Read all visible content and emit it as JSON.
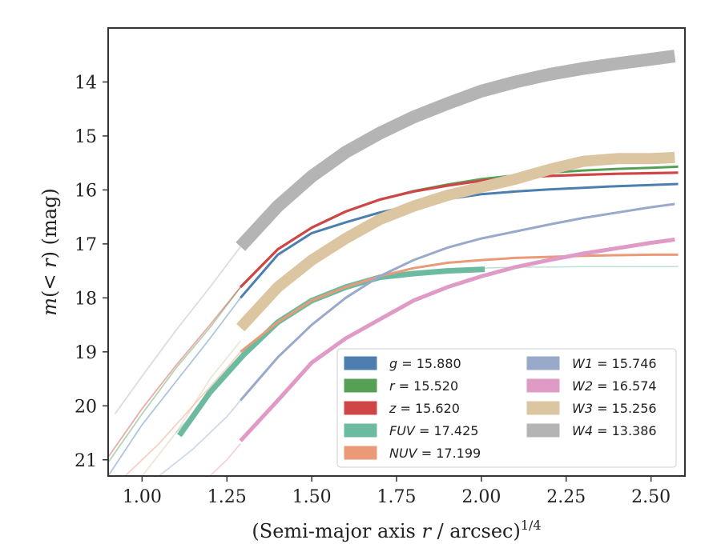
{
  "chart_data": {
    "type": "line",
    "title": "",
    "xlabel_html": [
      "(Semi-major axis ",
      "r",
      " / arcsec)",
      "1/4"
    ],
    "ylabel_parts": [
      "m",
      "(< ",
      "r",
      ") (mag)"
    ],
    "xlim": [
      0.9,
      2.6
    ],
    "ylim": [
      21.3,
      13.0
    ],
    "y_inverted": true,
    "xticks": [
      1.0,
      1.25,
      1.5,
      1.75,
      2.0,
      2.25,
      2.5
    ],
    "xtick_labels": [
      "1.00",
      "1.25",
      "1.50",
      "1.75",
      "2.00",
      "2.25",
      "2.50"
    ],
    "yticks": [
      14,
      15,
      16,
      17,
      18,
      19,
      20,
      21
    ],
    "ytick_labels": [
      "14",
      "15",
      "16",
      "17",
      "18",
      "19",
      "20",
      "21"
    ],
    "grid": false,
    "legend_position": "lower-right",
    "series": [
      {
        "key": "g",
        "label_var": "g",
        "label_val": "= 15.880",
        "color": "#4c7fb0",
        "faint": {
          "x": [
            0.9,
            1.0,
            1.1,
            1.2,
            1.29
          ],
          "y": [
            21.3,
            20.35,
            19.55,
            18.75,
            18.0
          ],
          "width": 1.8
        },
        "thick": {
          "x": [
            1.29,
            1.4,
            1.5,
            1.6,
            1.7,
            1.8,
            1.9,
            2.0,
            2.1,
            2.2,
            2.3,
            2.4,
            2.5,
            2.58
          ],
          "y": [
            18.0,
            17.2,
            16.8,
            16.6,
            16.42,
            16.28,
            16.17,
            16.08,
            16.03,
            15.99,
            15.96,
            15.93,
            15.91,
            15.89
          ],
          "width": 3.0
        }
      },
      {
        "key": "r",
        "label_var": "r",
        "label_val": "= 15.520",
        "color": "#55a055",
        "faint": {
          "x": [
            0.9,
            1.0,
            1.1,
            1.2,
            1.29
          ],
          "y": [
            21.05,
            20.15,
            19.3,
            18.55,
            17.8
          ],
          "width": 1.8
        },
        "thick": {
          "x": [
            1.29,
            1.4,
            1.5,
            1.6,
            1.7,
            1.8,
            1.9,
            2.0,
            2.1,
            2.2,
            2.3,
            2.4,
            2.5,
            2.58
          ],
          "y": [
            17.8,
            17.1,
            16.7,
            16.4,
            16.18,
            16.02,
            15.9,
            15.8,
            15.73,
            15.68,
            15.64,
            15.61,
            15.59,
            15.57
          ],
          "width": 3.0
        }
      },
      {
        "key": "z",
        "label_var": "z",
        "label_val": "= 15.620",
        "color": "#d04545",
        "faint": {
          "x": [
            0.9,
            1.0,
            1.1,
            1.2,
            1.29
          ],
          "y": [
            20.95,
            20.05,
            19.25,
            18.5,
            17.8
          ],
          "width": 1.8
        },
        "thick": {
          "x": [
            1.29,
            1.4,
            1.5,
            1.6,
            1.7,
            1.8,
            1.9,
            2.0,
            2.1,
            2.2,
            2.3,
            2.4,
            2.5,
            2.58
          ],
          "y": [
            17.8,
            17.1,
            16.7,
            16.4,
            16.18,
            16.03,
            15.92,
            15.83,
            15.77,
            15.74,
            15.72,
            15.7,
            15.69,
            15.68
          ],
          "width": 3.2
        }
      },
      {
        "key": "fuv",
        "label_var": "FUV",
        "label_val": "= 17.425",
        "color": "#6cbba0",
        "faint": {
          "x": [
            1.1,
            1.2,
            1.3,
            1.4,
            1.5,
            1.6,
            1.7,
            1.8,
            1.9,
            2.0,
            2.1,
            2.2,
            2.3,
            2.4,
            2.5,
            2.58
          ],
          "y": [
            20.5,
            19.8,
            19.0,
            18.5,
            18.1,
            17.85,
            17.65,
            17.55,
            17.48,
            17.45,
            17.43,
            17.43,
            17.42,
            17.42,
            17.42,
            17.42
          ],
          "width": 1.5
        },
        "thick": {
          "x": [
            1.11,
            1.2,
            1.3,
            1.4,
            1.5,
            1.6,
            1.7,
            1.8,
            1.9,
            2.01
          ],
          "y": [
            20.55,
            19.75,
            19.05,
            18.45,
            18.05,
            17.8,
            17.62,
            17.55,
            17.5,
            17.47
          ],
          "width": 7.0
        }
      },
      {
        "key": "nuv",
        "label_var": "NUV",
        "label_val": "= 17.199",
        "color": "#eb9a78",
        "faint": {
          "x": [
            0.95,
            1.05,
            1.15,
            1.25,
            1.29
          ],
          "y": [
            21.3,
            20.7,
            20.0,
            19.3,
            19.0
          ],
          "width": 1.8
        },
        "thick": {
          "x": [
            1.29,
            1.4,
            1.5,
            1.6,
            1.7,
            1.8,
            1.9,
            2.0,
            2.1,
            2.2,
            2.3,
            2.4,
            2.5,
            2.58
          ],
          "y": [
            19.0,
            18.45,
            18.05,
            17.8,
            17.6,
            17.45,
            17.35,
            17.3,
            17.26,
            17.24,
            17.22,
            17.21,
            17.2,
            17.2
          ],
          "width": 3.0
        }
      },
      {
        "key": "w1",
        "label_var": "W1",
        "label_val": "= 15.746",
        "color": "#99a9c9",
        "faint": {
          "x": [
            1.05,
            1.15,
            1.25,
            1.29
          ],
          "y": [
            21.3,
            20.8,
            20.2,
            19.9
          ],
          "width": 1.8
        },
        "thick": {
          "x": [
            1.29,
            1.4,
            1.5,
            1.6,
            1.7,
            1.8,
            1.9,
            2.0,
            2.1,
            2.2,
            2.3,
            2.4,
            2.5,
            2.57
          ],
          "y": [
            19.9,
            19.1,
            18.5,
            18.0,
            17.6,
            17.3,
            17.07,
            16.9,
            16.77,
            16.64,
            16.52,
            16.42,
            16.32,
            16.26
          ],
          "width": 3.0
        }
      },
      {
        "key": "w2",
        "label_var": "W2",
        "label_val": "= 16.574",
        "color": "#e09ac6",
        "faint": {
          "x": [
            1.2,
            1.25,
            1.29
          ],
          "y": [
            21.3,
            21.0,
            20.7
          ],
          "width": 1.8
        },
        "thick": {
          "x": [
            1.29,
            1.4,
            1.5,
            1.6,
            1.7,
            1.8,
            1.9,
            2.0,
            2.1,
            2.2,
            2.3,
            2.4,
            2.5,
            2.57
          ],
          "y": [
            20.65,
            19.9,
            19.2,
            18.75,
            18.4,
            18.05,
            17.8,
            17.6,
            17.43,
            17.3,
            17.18,
            17.08,
            16.98,
            16.92
          ],
          "width": 5.0
        }
      },
      {
        "key": "w3",
        "label_var": "W3",
        "label_val": "= 15.256",
        "color": "#dcc6a2",
        "faint": {
          "x": [
            1.0,
            1.1,
            1.2,
            1.29
          ],
          "y": [
            21.3,
            20.5,
            19.5,
            18.8
          ],
          "width": 1.8
        },
        "thick": {
          "x": [
            1.29,
            1.4,
            1.5,
            1.6,
            1.7,
            1.8,
            1.9,
            2.0,
            2.1,
            2.2,
            2.3,
            2.4,
            2.5,
            2.57
          ],
          "y": [
            18.55,
            17.8,
            17.3,
            16.9,
            16.55,
            16.3,
            16.1,
            15.95,
            15.8,
            15.62,
            15.47,
            15.42,
            15.42,
            15.4
          ],
          "width": 14.0
        }
      },
      {
        "key": "w4",
        "label_var": "W4",
        "label_val": "= 13.386",
        "color": "#b4b4b4",
        "faint": {
          "x": [
            0.92,
            1.0,
            1.1,
            1.2,
            1.29
          ],
          "y": [
            20.15,
            19.45,
            18.6,
            17.8,
            17.05
          ],
          "width": 1.8
        },
        "thick": {
          "x": [
            1.29,
            1.4,
            1.5,
            1.6,
            1.7,
            1.8,
            1.9,
            2.0,
            2.1,
            2.2,
            2.3,
            2.4,
            2.5,
            2.57
          ],
          "y": [
            17.05,
            16.3,
            15.75,
            15.3,
            14.95,
            14.65,
            14.4,
            14.17,
            14.0,
            13.86,
            13.75,
            13.66,
            13.58,
            13.52
          ],
          "width": 16.0
        }
      }
    ]
  }
}
